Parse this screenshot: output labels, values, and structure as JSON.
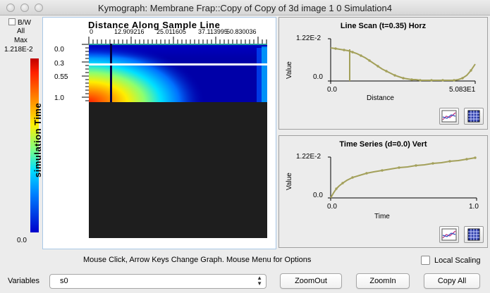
{
  "window": {
    "title": "Kymograph: Membrane Frap::Copy of Copy of 3d image 1 0 Simulation4"
  },
  "colorbar": {
    "bw_label": "B/W",
    "all_label": "All",
    "max_label": "Max",
    "max_value": "1.218E-2",
    "min_value": "0.0"
  },
  "kymo": {
    "x_axis_title": "Distance Along Sample Line",
    "x_ticks": [
      "0",
      "12.909216",
      "25.011605",
      "37.113995",
      "50.830036"
    ],
    "y_axis_title": "simulation Time",
    "y_ticks": [
      "0.0",
      "0.3",
      "0.55",
      "1.0"
    ]
  },
  "line_scan": {
    "title": "Line Scan (t=0.35) Horz",
    "y_label": "Value",
    "x_label": "Distance",
    "y_ticks": [
      "1.22E-2",
      "0.0"
    ],
    "x_ticks": [
      "0.0",
      "5.083E1"
    ]
  },
  "time_series": {
    "title": "Time Series (d=0.0) Vert",
    "y_label": "Value",
    "x_label": "Time",
    "y_ticks": [
      "1.22E-2",
      "0.0"
    ],
    "x_ticks": [
      "0.0",
      "1.0"
    ]
  },
  "hint": "Mouse Click, Arrow Keys Change Graph.  Mouse Menu for Options",
  "local_scaling_label": "Local Scaling",
  "variables": {
    "label": "Variables",
    "selected": "s0"
  },
  "buttons": {
    "zoom_out": "ZoomOut",
    "zoom_in": "ZoomIn",
    "copy_all": "Copy All"
  },
  "colors": {
    "trace": "#a3a05a",
    "dark_region": "#1e1e1e"
  }
}
